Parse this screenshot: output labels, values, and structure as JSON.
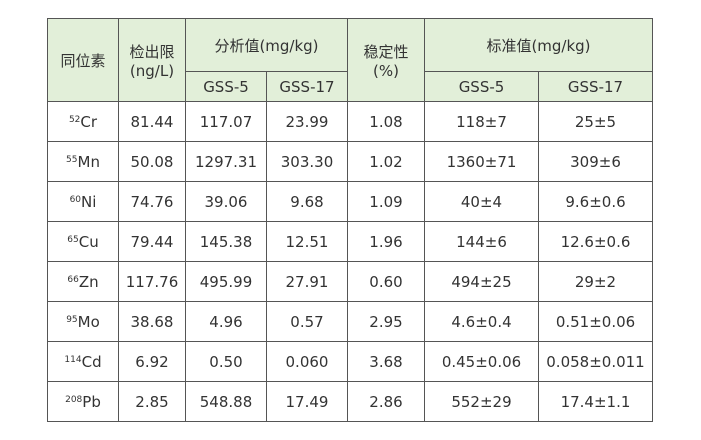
{
  "header": {
    "isotope": "同位素",
    "lod": "检出限",
    "lod_unit": "(ng/L)",
    "measured": "分析值(mg/kg)",
    "measured_samples": [
      "GSS-5",
      "GSS-17"
    ],
    "stability": "稳定性",
    "stability_unit": "(%)",
    "standard": "标准值(mg/kg)",
    "standard_samples": [
      "GSS-5",
      "GSS-17"
    ]
  },
  "rows": [
    {
      "mass": "52",
      "element": "Cr",
      "cells": [
        "81.44",
        "117.07",
        "23.99",
        "1.08",
        "118±7",
        "25±5"
      ]
    },
    {
      "mass": "55",
      "element": "Mn",
      "cells": [
        "50.08",
        "1297.31",
        "303.30",
        "1.02",
        "1360±71",
        "309±6"
      ]
    },
    {
      "mass": "60",
      "element": "Ni",
      "cells": [
        "74.76",
        "39.06",
        "9.68",
        "1.09",
        "40±4",
        "9.6±0.6"
      ]
    },
    {
      "mass": "65",
      "element": "Cu",
      "cells": [
        "79.44",
        "145.38",
        "12.51",
        "1.96",
        "144±6",
        "12.6±0.6"
      ]
    },
    {
      "mass": "66",
      "element": "Zn",
      "cells": [
        "117.76",
        "495.99",
        "27.91",
        "0.60",
        "494±25",
        "29±2"
      ]
    },
    {
      "mass": "95",
      "element": "Mo",
      "cells": [
        "38.68",
        "4.96",
        "0.57",
        "2.95",
        "4.6±0.4",
        "0.51±0.06"
      ]
    },
    {
      "mass": "114",
      "element": "Cd",
      "cells": [
        "6.92",
        "0.50",
        "0.060",
        "3.68",
        "0.45±0.06",
        "0.058±0.011"
      ]
    },
    {
      "mass": "208",
      "element": "Pb",
      "cells": [
        "2.85",
        "548.88",
        "17.49",
        "2.86",
        "552±29",
        "17.4±1.1"
      ]
    }
  ]
}
